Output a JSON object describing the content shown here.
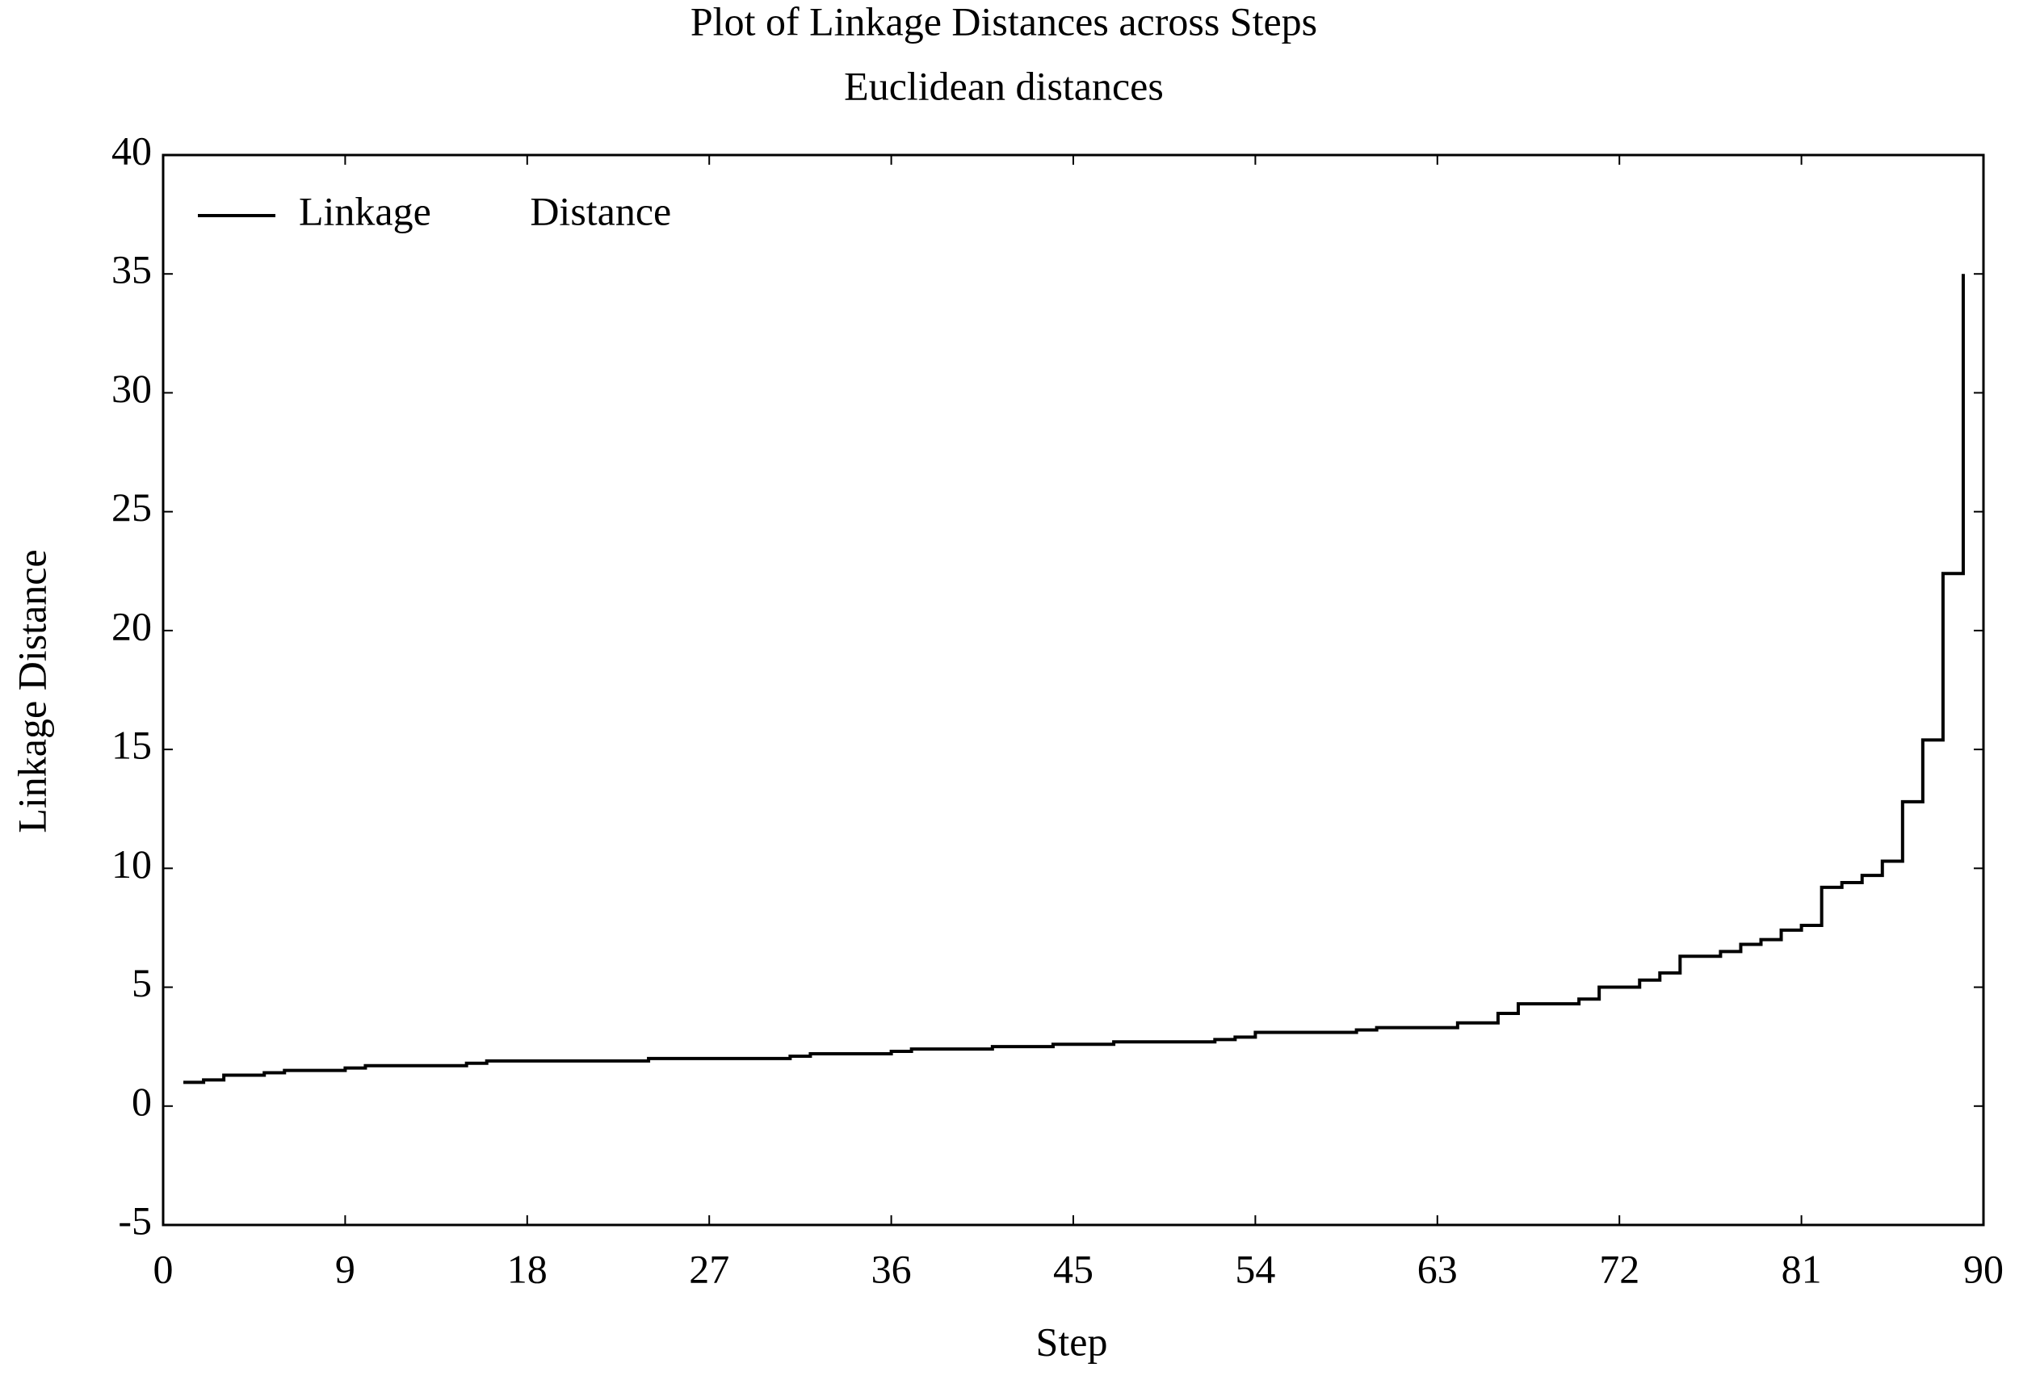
{
  "chart_data": {
    "type": "line",
    "title": "Plot of Linkage Distances across Steps",
    "subtitle": "Euclidean distances",
    "x_label": "Step",
    "y_label": "Linkage Distance",
    "step": true,
    "x": [
      1,
      2,
      3,
      4,
      5,
      6,
      7,
      8,
      9,
      10,
      11,
      12,
      13,
      14,
      15,
      16,
      17,
      18,
      19,
      20,
      21,
      22,
      23,
      24,
      25,
      26,
      27,
      28,
      29,
      30,
      31,
      32,
      33,
      34,
      35,
      36,
      37,
      38,
      39,
      40,
      41,
      42,
      43,
      44,
      45,
      46,
      47,
      48,
      49,
      50,
      51,
      52,
      53,
      54,
      55,
      56,
      57,
      58,
      59,
      60,
      61,
      62,
      63,
      64,
      65,
      66,
      67,
      68,
      69,
      70,
      71,
      72,
      73,
      74,
      75,
      76,
      77,
      78,
      79,
      80,
      81,
      82,
      83,
      84,
      85,
      86,
      87,
      88,
      89
    ],
    "series": [
      {
        "name": "Linkage Distance",
        "color": "#000000",
        "values": [
          1.0,
          1.1,
          1.3,
          1.3,
          1.4,
          1.5,
          1.5,
          1.5,
          1.6,
          1.7,
          1.7,
          1.7,
          1.7,
          1.7,
          1.8,
          1.9,
          1.9,
          1.9,
          1.9,
          1.9,
          1.9,
          1.9,
          1.9,
          2.0,
          2.0,
          2.0,
          2.0,
          2.0,
          2.0,
          2.0,
          2.1,
          2.2,
          2.2,
          2.2,
          2.2,
          2.3,
          2.4,
          2.4,
          2.4,
          2.4,
          2.5,
          2.5,
          2.5,
          2.6,
          2.6,
          2.6,
          2.7,
          2.7,
          2.7,
          2.7,
          2.7,
          2.8,
          2.9,
          3.1,
          3.1,
          3.1,
          3.1,
          3.1,
          3.2,
          3.3,
          3.3,
          3.3,
          3.3,
          3.5,
          3.5,
          3.9,
          4.3,
          4.3,
          4.3,
          4.5,
          5.0,
          5.0,
          5.3,
          5.6,
          6.3,
          6.3,
          6.5,
          6.8,
          7.0,
          7.4,
          7.6,
          9.2,
          9.4,
          9.7,
          10.3,
          12.8,
          15.4,
          22.4,
          35.0
        ]
      }
    ],
    "xlim": [
      0,
      90
    ],
    "xticks": [
      0,
      9,
      18,
      27,
      36,
      45,
      54,
      63,
      72,
      81,
      90
    ],
    "ylim": [
      -5,
      40
    ],
    "yticks": [
      -5,
      0,
      5,
      10,
      15,
      20,
      25,
      30,
      35,
      40
    ],
    "grid": false,
    "legend": "top-left"
  }
}
